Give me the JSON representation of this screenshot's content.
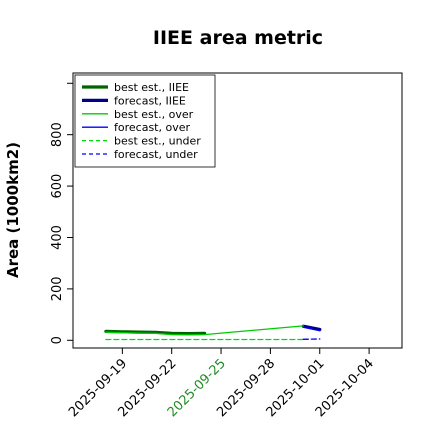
{
  "chart_data": {
    "type": "line",
    "title": "IIEE area metric",
    "xlabel": "",
    "ylabel": "Area (1000km2)",
    "ylim": [
      -30,
      1040
    ],
    "xlim": [
      "2025-09-16",
      "2025-10-06"
    ],
    "yticks": [
      0,
      200,
      400,
      600,
      800
    ],
    "ytick_labels": [
      "0",
      "200",
      "400",
      "600",
      "800"
    ],
    "xticks": [
      "2025-09-19",
      "2025-09-22",
      "2025-09-25",
      "2025-09-28",
      "2025-10-01",
      "2025-10-04"
    ],
    "xtick_labels": [
      "2025-09-19",
      "2025-09-22",
      "2025-09-25",
      "2025-09-28",
      "2025-10-01",
      "2025-10-04"
    ],
    "xtick_colors": [
      "#000000",
      "#000000",
      "#228b22",
      "#000000",
      "#000000",
      "#000000"
    ],
    "grid": false,
    "legend_position": "top-left",
    "series": [
      {
        "name": "best est., IIEE",
        "color": "#006400",
        "style": "solid",
        "width": "thick",
        "points": [
          [
            "2025-09-18",
            35
          ],
          [
            "2025-09-19",
            33
          ],
          [
            "2025-09-20",
            32
          ],
          [
            "2025-09-21",
            31
          ],
          [
            "2025-09-22",
            27
          ],
          [
            "2025-09-23",
            26
          ],
          [
            "2025-09-24",
            27
          ]
        ]
      },
      {
        "name": "forecast, IIEE",
        "color": "#00008b",
        "style": "solid",
        "width": "thick",
        "points": [
          [
            "2025-09-30",
            55
          ],
          [
            "2025-10-01",
            42
          ]
        ]
      },
      {
        "name": "best est., over",
        "color": "#00cc00",
        "style": "solid",
        "width": "normal",
        "points": [
          [
            "2025-09-18",
            31
          ],
          [
            "2025-09-19",
            29
          ],
          [
            "2025-09-20",
            28
          ],
          [
            "2025-09-21",
            27
          ],
          [
            "2025-09-22",
            22
          ],
          [
            "2025-09-23",
            21
          ],
          [
            "2025-09-24",
            22
          ],
          [
            "2025-09-30",
            56
          ]
        ]
      },
      {
        "name": "forecast, over",
        "color": "#0000ff",
        "style": "solid",
        "width": "normal",
        "points": [
          [
            "2025-09-30",
            51
          ],
          [
            "2025-10-01",
            37
          ]
        ]
      },
      {
        "name": "best est., under",
        "color": "#00dd00",
        "style": "dashed",
        "width": "normal",
        "points": [
          [
            "2025-09-18",
            3
          ],
          [
            "2025-09-19",
            3
          ],
          [
            "2025-09-20",
            3
          ],
          [
            "2025-09-21",
            3
          ],
          [
            "2025-09-22",
            3
          ],
          [
            "2025-09-23",
            3
          ],
          [
            "2025-09-24",
            3
          ],
          [
            "2025-09-30",
            3
          ]
        ]
      },
      {
        "name": "forecast, under",
        "color": "#0000ff",
        "style": "dashed",
        "width": "normal",
        "points": [
          [
            "2025-09-30",
            4
          ],
          [
            "2025-10-01",
            5
          ]
        ]
      }
    ]
  }
}
